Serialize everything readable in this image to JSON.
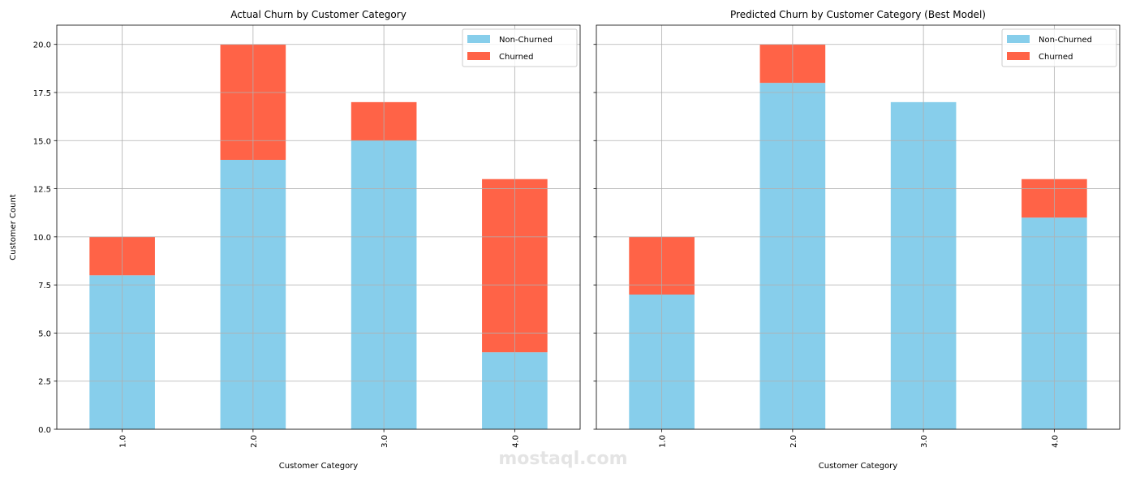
{
  "chart_data": [
    {
      "type": "bar",
      "stacked": true,
      "title": "Actual Churn by Customer Category",
      "xlabel": "Customer Category",
      "ylabel": "Customer Count",
      "categories": [
        "1.0",
        "2.0",
        "3.0",
        "4.0"
      ],
      "series": [
        {
          "name": "Non-Churned",
          "color": "#87CEEB",
          "values": [
            8,
            14,
            15,
            4
          ]
        },
        {
          "name": "Churned",
          "color": "#FF6347",
          "values": [
            2,
            6,
            2,
            9
          ]
        }
      ],
      "ylim": [
        0,
        21
      ],
      "yticks": [
        "0.0",
        "2.5",
        "5.0",
        "7.5",
        "10.0",
        "12.5",
        "15.0",
        "17.5",
        "20.0"
      ],
      "grid": true,
      "legend": "top-right"
    },
    {
      "type": "bar",
      "stacked": true,
      "title": "Predicted Churn by Customer Category (Best Model)",
      "xlabel": "Customer Category",
      "ylabel": "",
      "categories": [
        "1.0",
        "2.0",
        "3.0",
        "4.0"
      ],
      "series": [
        {
          "name": "Non-Churned",
          "color": "#87CEEB",
          "values": [
            7,
            18,
            17,
            11
          ]
        },
        {
          "name": "Churned",
          "color": "#FF6347",
          "values": [
            3,
            2,
            0,
            2
          ]
        }
      ],
      "ylim": [
        0,
        21
      ],
      "yticks": [
        "0.0",
        "2.5",
        "5.0",
        "7.5",
        "10.0",
        "12.5",
        "15.0",
        "17.5",
        "20.0"
      ],
      "grid": true,
      "legend": "top-right"
    }
  ],
  "watermark": "mostaql.com"
}
